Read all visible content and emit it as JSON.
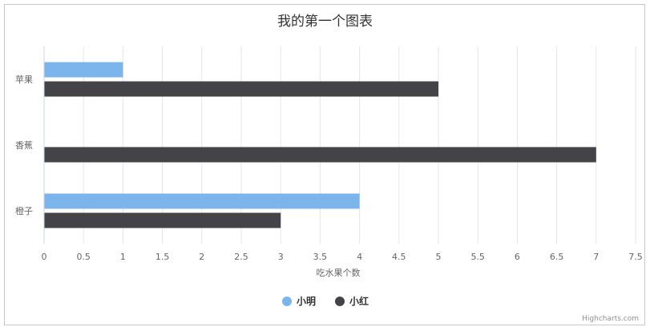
{
  "chart_data": {
    "type": "bar",
    "orientation": "horizontal",
    "title": "我的第一个图表",
    "categories": [
      "苹果",
      "香蕉",
      "橙子"
    ],
    "series": [
      {
        "name": "小明",
        "values": [
          1,
          0,
          4
        ],
        "color": "#7cb5ec"
      },
      {
        "name": "小红",
        "values": [
          5,
          7,
          3
        ],
        "color": "#434348"
      }
    ],
    "xlabel": "吃水果个数",
    "value_axis_range": [
      0,
      7.5
    ],
    "value_ticks": [
      "0",
      "0.5",
      "1",
      "1.5",
      "2",
      "2.5",
      "3",
      "3.5",
      "4",
      "4.5",
      "5",
      "5.5",
      "6",
      "6.5",
      "7",
      "7.5"
    ],
    "grid": true,
    "legend_position": "bottom-center"
  },
  "credits": "Highcharts.com"
}
